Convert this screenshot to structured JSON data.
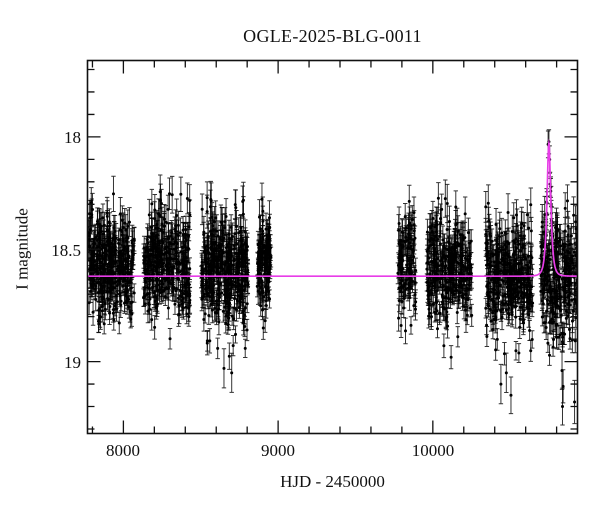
{
  "title": "OGLE-2025-BLG-0011",
  "chart_data": {
    "type": "scatter",
    "title": "OGLE-2025-BLG-0011",
    "xlabel": "HJD - 2450000",
    "ylabel": "I magnitude",
    "xlim": [
      7768,
      10935
    ],
    "ylim": [
      17.66,
      19.32
    ],
    "y_axis_inverted_magnitudes": true,
    "grid": false,
    "legend": "none",
    "x_ticks": [
      {
        "value": 8000,
        "label": "8000"
      },
      {
        "value": 9000,
        "label": "9000"
      },
      {
        "value": 10000,
        "label": "10000"
      }
    ],
    "x_minor_step": 200,
    "y_ticks": [
      {
        "value": 18.0,
        "label": "18"
      },
      {
        "value": 18.5,
        "label": "18.5"
      },
      {
        "value": 19.0,
        "label": "19"
      }
    ],
    "y_minor_step": 0.1,
    "baseline_mag": 18.62,
    "model": {
      "type": "paczynski-microlensing",
      "t0": 10750,
      "tE": 18,
      "u0": 0.675,
      "baseline_mag": 18.62,
      "peak_mag": 18.03,
      "color": "#e83ce8"
    },
    "clusters": [
      {
        "t_start": 7774,
        "t_end": 8071,
        "n": 340,
        "mean_mag": 18.58,
        "sigma": 0.115,
        "bright_clip": 0.33,
        "faint_clip": 0.42
      },
      {
        "t_start": 8129,
        "t_end": 8432,
        "n": 320,
        "mean_mag": 18.57,
        "sigma": 0.115,
        "bright_clip": 0.33,
        "faint_clip": 0.44
      },
      {
        "t_start": 8503,
        "t_end": 8806,
        "n": 370,
        "mean_mag": 18.6,
        "sigma": 0.125,
        "bright_clip": 0.34,
        "faint_clip": 0.5
      },
      {
        "t_start": 8865,
        "t_end": 8955,
        "n": 120,
        "mean_mag": 18.58,
        "sigma": 0.115,
        "bright_clip": 0.32,
        "faint_clip": 0.4
      },
      {
        "t_start": 9774,
        "t_end": 9890,
        "n": 110,
        "mean_mag": 18.56,
        "sigma": 0.13,
        "bright_clip": 0.32,
        "faint_clip": 0.45
      },
      {
        "t_start": 9961,
        "t_end": 10252,
        "n": 300,
        "mean_mag": 18.6,
        "sigma": 0.12,
        "bright_clip": 0.33,
        "faint_clip": 0.46
      },
      {
        "t_start": 10342,
        "t_end": 10645,
        "n": 330,
        "mean_mag": 18.62,
        "sigma": 0.13,
        "bright_clip": 0.34,
        "faint_clip": 0.55
      },
      {
        "t_start": 10697,
        "t_end": 10935,
        "n": 260,
        "mean_mag": 18.63,
        "sigma": 0.135,
        "bright_clip": 0.4,
        "faint_clip": 0.6
      }
    ],
    "deep_outliers": [
      [
        8650,
        19.03
      ],
      [
        8700,
        19.05
      ],
      [
        10440,
        19.1
      ],
      [
        10505,
        19.15
      ],
      [
        10475,
        19.05
      ],
      [
        10835,
        19.04
      ],
      [
        10842,
        19.11
      ],
      [
        10838,
        19.2
      ],
      [
        10916,
        19.18
      ]
    ],
    "event_points": {
      "t0": 10750,
      "half_span": 36,
      "n": 26,
      "mag_sigma": 0.035,
      "note": "survey points tracing the magnified peak of the model"
    },
    "colors": {
      "points": "#000000",
      "error_bars": "rgba(0,0,0,0.8)",
      "model_line": "#e83ce8",
      "frame": "#111111",
      "background": "#ffffff"
    }
  }
}
